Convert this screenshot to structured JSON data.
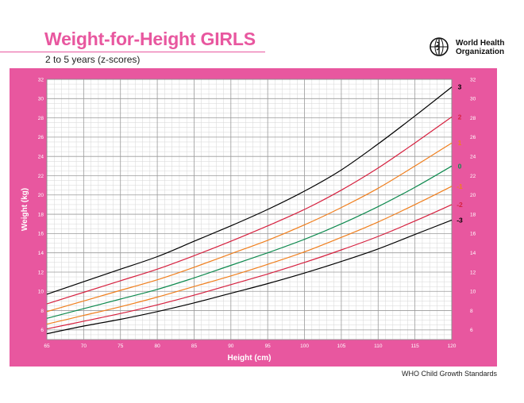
{
  "header": {
    "title": "Weight-for-Height GIRLS",
    "subtitle": "2 to 5 years (z-scores)",
    "org_line1": "World Health",
    "org_line2": "Organization"
  },
  "footer": {
    "source": "WHO Child Growth Standards"
  },
  "colors": {
    "brand_pink": "#e8579f",
    "grid_major": "#9a9a9a",
    "grid_minor": "#d6d6d6",
    "z3": "#000000",
    "z2": "#d6213f",
    "z1": "#f07f1e",
    "z0": "#0f8a4f"
  },
  "chart_data": {
    "type": "line",
    "title": "Weight-for-Height GIRLS",
    "subtitle": "2 to 5 years (z-scores)",
    "xlabel": "Height (cm)",
    "ylabel": "Weight (kg)",
    "xlim": [
      65,
      120
    ],
    "ylim": [
      5,
      32
    ],
    "x_ticks": [
      "65",
      "70",
      "75",
      "80",
      "85",
      "90",
      "95",
      "100",
      "105",
      "110",
      "115",
      "120"
    ],
    "y_ticks": [
      "6",
      "8",
      "10",
      "12",
      "14",
      "16",
      "18",
      "20",
      "22",
      "24",
      "26",
      "28",
      "30",
      "32"
    ],
    "grid": true,
    "x": [
      65,
      70,
      75,
      80,
      85,
      90,
      95,
      100,
      105,
      110,
      115,
      120
    ],
    "series": [
      {
        "name": "3",
        "color": "#000000",
        "values": [
          9.7,
          11.0,
          12.3,
          13.6,
          15.2,
          16.8,
          18.5,
          20.4,
          22.6,
          25.3,
          28.2,
          31.2
        ]
      },
      {
        "name": "2",
        "color": "#d6213f",
        "values": [
          8.7,
          9.9,
          11.1,
          12.3,
          13.7,
          15.2,
          16.8,
          18.5,
          20.5,
          22.8,
          25.4,
          28.1
        ]
      },
      {
        "name": "1",
        "color": "#f07f1e",
        "values": [
          7.9,
          9.0,
          10.1,
          11.2,
          12.5,
          13.9,
          15.3,
          16.9,
          18.7,
          20.7,
          23.0,
          25.4
        ]
      },
      {
        "name": "0",
        "color": "#0f8a4f",
        "values": [
          7.2,
          8.2,
          9.2,
          10.2,
          11.4,
          12.7,
          14.0,
          15.4,
          17.0,
          18.8,
          20.8,
          23.0
        ]
      },
      {
        "name": "-1",
        "color": "#f07f1e",
        "values": [
          6.6,
          7.5,
          8.4,
          9.4,
          10.5,
          11.6,
          12.8,
          14.1,
          15.6,
          17.2,
          19.0,
          20.9
        ]
      },
      {
        "name": "-2",
        "color": "#d6213f",
        "values": [
          6.1,
          6.9,
          7.7,
          8.6,
          9.6,
          10.7,
          11.8,
          13.0,
          14.3,
          15.7,
          17.3,
          19.0
        ]
      },
      {
        "name": "-3",
        "color": "#000000",
        "values": [
          5.6,
          6.4,
          7.1,
          7.9,
          8.8,
          9.8,
          10.8,
          11.9,
          13.1,
          14.4,
          15.9,
          17.4
        ]
      }
    ]
  }
}
